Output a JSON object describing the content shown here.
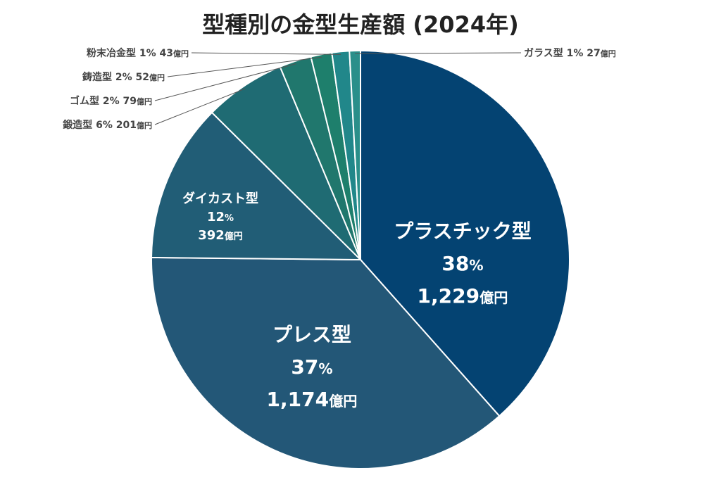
{
  "chart_data": {
    "type": "pie",
    "title": "型種別の金型生産額 (2024年)",
    "unit": "億円",
    "slices": [
      {
        "name": "プラスチック型",
        "percent_label": "38%",
        "value": 1229,
        "value_label": "1,229",
        "color": "#044372"
      },
      {
        "name": "プレス型",
        "percent_label": "37%",
        "value": 1174,
        "value_label": "1,174",
        "color": "#235777"
      },
      {
        "name": "ダイカスト型",
        "percent_label": "12%",
        "value": 392,
        "value_label": "392",
        "color": "#215d76"
      },
      {
        "name": "鍛造型",
        "percent_label": "6%",
        "value": 201,
        "value_label": "201",
        "color": "#1f6b73"
      },
      {
        "name": "ゴム型",
        "percent_label": "2%",
        "value": 79,
        "value_label": "79",
        "color": "#20776d"
      },
      {
        "name": "鋳造型",
        "percent_label": "2%",
        "value": 52,
        "value_label": "52",
        "color": "#1e7f6c"
      },
      {
        "name": "粉末冶金型",
        "percent_label": "1%",
        "value": 43,
        "value_label": "43",
        "color": "#21878a"
      },
      {
        "name": "ガラス型",
        "percent_label": "1%",
        "value": 27,
        "value_label": "27",
        "color": "#2a8f8a"
      }
    ]
  }
}
